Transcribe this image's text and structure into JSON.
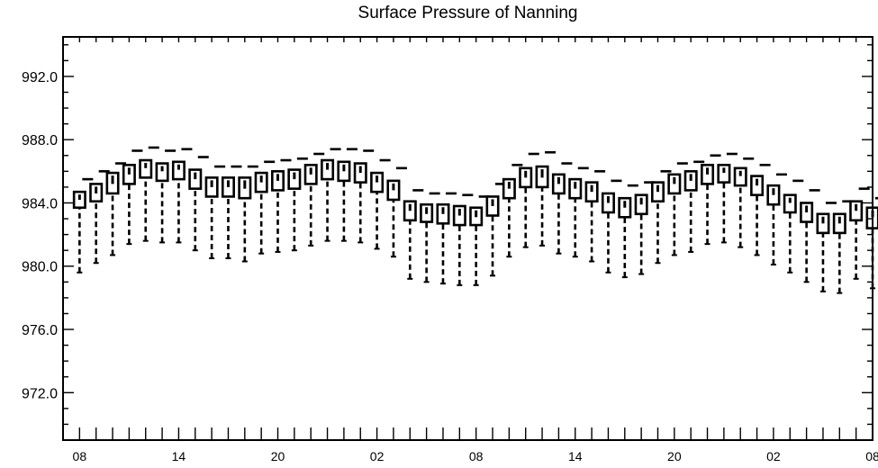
{
  "chart_data": {
    "type": "box",
    "title": "Surface Pressure of Nanning",
    "xlabel": "",
    "ylabel": "",
    "ylim": [
      969.0,
      994.5
    ],
    "xlim": [
      0,
      49
    ],
    "y_ticks": [
      972.0,
      976.0,
      980.0,
      984.0,
      988.0,
      992.0
    ],
    "y_tick_labels": [
      "972.0",
      "976.0",
      "980.0",
      "984.0",
      "988.0",
      "992.0"
    ],
    "y_minor_step": 1.0,
    "x_ticks": [
      1,
      7,
      13,
      19,
      25,
      31,
      37,
      43,
      49
    ],
    "x_tick_labels": [
      "08",
      "14",
      "20",
      "02",
      "08",
      "14",
      "20",
      "02",
      "08"
    ],
    "grid": false,
    "boxes": [
      {
        "x": 1,
        "q1": 983.7,
        "median": 984.2,
        "q3": 984.7,
        "whisker_low": 979.6,
        "whisker_high": 985.5
      },
      {
        "x": 2,
        "q1": 984.1,
        "median": 984.6,
        "q3": 985.2,
        "whisker_low": 980.2,
        "whisker_high": 986.0
      },
      {
        "x": 3,
        "q1": 984.6,
        "median": 985.2,
        "q3": 985.9,
        "whisker_low": 980.7,
        "whisker_high": 986.5
      },
      {
        "x": 4,
        "q1": 985.2,
        "median": 985.8,
        "q3": 986.4,
        "whisker_low": 981.4,
        "whisker_high": 987.3
      },
      {
        "x": 5,
        "q1": 985.6,
        "median": 986.2,
        "q3": 986.7,
        "whisker_low": 981.6,
        "whisker_high": 987.5
      },
      {
        "x": 6,
        "q1": 985.4,
        "median": 986.0,
        "q3": 986.5,
        "whisker_low": 981.5,
        "whisker_high": 987.3
      },
      {
        "x": 7,
        "q1": 985.5,
        "median": 986.1,
        "q3": 986.6,
        "whisker_low": 981.5,
        "whisker_high": 987.4
      },
      {
        "x": 8,
        "q1": 984.9,
        "median": 985.5,
        "q3": 986.1,
        "whisker_low": 981.0,
        "whisker_high": 986.9
      },
      {
        "x": 9,
        "q1": 984.4,
        "median": 985.0,
        "q3": 985.6,
        "whisker_low": 980.5,
        "whisker_high": 986.3
      },
      {
        "x": 10,
        "q1": 984.4,
        "median": 985.0,
        "q3": 985.6,
        "whisker_low": 980.5,
        "whisker_high": 986.3
      },
      {
        "x": 11,
        "q1": 984.3,
        "median": 984.9,
        "q3": 985.6,
        "whisker_low": 980.3,
        "whisker_high": 986.3
      },
      {
        "x": 12,
        "q1": 984.7,
        "median": 985.3,
        "q3": 985.9,
        "whisker_low": 980.8,
        "whisker_high": 986.6
      },
      {
        "x": 13,
        "q1": 984.8,
        "median": 985.4,
        "q3": 986.0,
        "whisker_low": 980.9,
        "whisker_high": 986.7
      },
      {
        "x": 14,
        "q1": 984.9,
        "median": 985.5,
        "q3": 986.1,
        "whisker_low": 981.0,
        "whisker_high": 986.8
      },
      {
        "x": 15,
        "q1": 985.2,
        "median": 985.8,
        "q3": 986.4,
        "whisker_low": 981.3,
        "whisker_high": 987.1
      },
      {
        "x": 16,
        "q1": 985.5,
        "median": 986.1,
        "q3": 986.7,
        "whisker_low": 981.6,
        "whisker_high": 987.4
      },
      {
        "x": 17,
        "q1": 985.4,
        "median": 986.0,
        "q3": 986.6,
        "whisker_low": 981.6,
        "whisker_high": 987.4
      },
      {
        "x": 18,
        "q1": 985.3,
        "median": 985.9,
        "q3": 986.5,
        "whisker_low": 981.5,
        "whisker_high": 987.3
      },
      {
        "x": 19,
        "q1": 984.7,
        "median": 985.3,
        "q3": 985.9,
        "whisker_low": 981.1,
        "whisker_high": 986.7
      },
      {
        "x": 20,
        "q1": 984.2,
        "median": 984.8,
        "q3": 985.4,
        "whisker_low": 980.6,
        "whisker_high": 986.2
      },
      {
        "x": 21,
        "q1": 982.9,
        "median": 983.5,
        "q3": 984.1,
        "whisker_low": 979.2,
        "whisker_high": 984.8
      },
      {
        "x": 22,
        "q1": 982.8,
        "median": 983.3,
        "q3": 983.9,
        "whisker_low": 979.0,
        "whisker_high": 984.6
      },
      {
        "x": 23,
        "q1": 982.7,
        "median": 983.3,
        "q3": 983.9,
        "whisker_low": 978.9,
        "whisker_high": 984.6
      },
      {
        "x": 24,
        "q1": 982.6,
        "median": 983.2,
        "q3": 983.8,
        "whisker_low": 978.8,
        "whisker_high": 984.5
      },
      {
        "x": 25,
        "q1": 982.6,
        "median": 983.1,
        "q3": 983.7,
        "whisker_low": 978.8,
        "whisker_high": 984.4
      },
      {
        "x": 26,
        "q1": 983.2,
        "median": 983.8,
        "q3": 984.4,
        "whisker_low": 979.4,
        "whisker_high": 985.2
      },
      {
        "x": 27,
        "q1": 984.3,
        "median": 984.9,
        "q3": 985.5,
        "whisker_low": 980.6,
        "whisker_high": 986.4
      },
      {
        "x": 28,
        "q1": 985.0,
        "median": 985.6,
        "q3": 986.2,
        "whisker_low": 981.2,
        "whisker_high": 987.1
      },
      {
        "x": 29,
        "q1": 985.0,
        "median": 985.6,
        "q3": 986.3,
        "whisker_low": 981.3,
        "whisker_high": 987.2
      },
      {
        "x": 30,
        "q1": 984.6,
        "median": 985.2,
        "q3": 985.8,
        "whisker_low": 980.8,
        "whisker_high": 986.5
      },
      {
        "x": 31,
        "q1": 984.3,
        "median": 984.9,
        "q3": 985.5,
        "whisker_low": 980.6,
        "whisker_high": 986.2
      },
      {
        "x": 32,
        "q1": 984.1,
        "median": 984.7,
        "q3": 985.3,
        "whisker_low": 980.3,
        "whisker_high": 986.0
      },
      {
        "x": 33,
        "q1": 983.4,
        "median": 984.0,
        "q3": 984.6,
        "whisker_low": 979.6,
        "whisker_high": 985.4
      },
      {
        "x": 34,
        "q1": 983.1,
        "median": 983.7,
        "q3": 984.3,
        "whisker_low": 979.3,
        "whisker_high": 985.1
      },
      {
        "x": 35,
        "q1": 983.3,
        "median": 983.9,
        "q3": 984.5,
        "whisker_low": 979.5,
        "whisker_high": 985.3
      },
      {
        "x": 36,
        "q1": 984.1,
        "median": 984.7,
        "q3": 985.3,
        "whisker_low": 980.2,
        "whisker_high": 986.0
      },
      {
        "x": 37,
        "q1": 984.6,
        "median": 985.2,
        "q3": 985.8,
        "whisker_low": 980.7,
        "whisker_high": 986.5
      },
      {
        "x": 38,
        "q1": 984.8,
        "median": 985.4,
        "q3": 986.0,
        "whisker_low": 980.9,
        "whisker_high": 986.6
      },
      {
        "x": 39,
        "q1": 985.2,
        "median": 985.8,
        "q3": 986.4,
        "whisker_low": 981.4,
        "whisker_high": 987.0
      },
      {
        "x": 40,
        "q1": 985.3,
        "median": 985.9,
        "q3": 986.4,
        "whisker_low": 981.5,
        "whisker_high": 987.1
      },
      {
        "x": 41,
        "q1": 985.1,
        "median": 985.7,
        "q3": 986.2,
        "whisker_low": 981.2,
        "whisker_high": 986.8
      },
      {
        "x": 42,
        "q1": 984.5,
        "median": 985.1,
        "q3": 985.7,
        "whisker_low": 980.7,
        "whisker_high": 986.4
      },
      {
        "x": 43,
        "q1": 983.9,
        "median": 984.5,
        "q3": 985.1,
        "whisker_low": 980.1,
        "whisker_high": 985.8
      },
      {
        "x": 44,
        "q1": 983.4,
        "median": 984.0,
        "q3": 984.5,
        "whisker_low": 979.6,
        "whisker_high": 985.4
      },
      {
        "x": 45,
        "q1": 982.8,
        "median": 983.4,
        "q3": 984.0,
        "whisker_low": 979.0,
        "whisker_high": 984.8
      },
      {
        "x": 46,
        "q1": 982.1,
        "median": 982.7,
        "q3": 983.3,
        "whisker_low": 978.4,
        "whisker_high": 984.0
      },
      {
        "x": 47,
        "q1": 982.1,
        "median": 982.7,
        "q3": 983.3,
        "whisker_low": 978.3,
        "whisker_high": 984.1
      },
      {
        "x": 48,
        "q1": 982.9,
        "median": 983.5,
        "q3": 984.1,
        "whisker_low": 979.2,
        "whisker_high": 984.9
      },
      {
        "x": 49,
        "q1": 982.4,
        "median": 983.1,
        "q3": 983.7,
        "whisker_low": 978.6,
        "whisker_high": 984.3
      }
    ]
  }
}
